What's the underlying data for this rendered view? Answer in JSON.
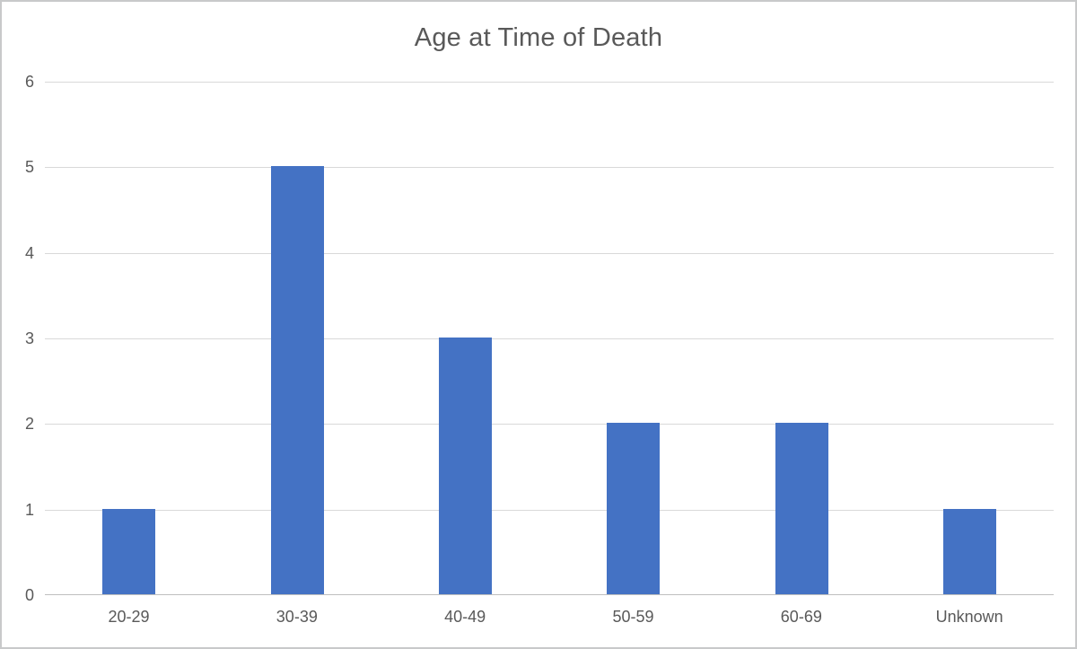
{
  "chart_data": {
    "type": "bar",
    "title": "Age at Time of Death",
    "categories": [
      "20-29",
      "30-39",
      "40-49",
      "50-59",
      "60-69",
      "Unknown"
    ],
    "values": [
      1,
      5,
      3,
      2,
      2,
      1
    ],
    "xlabel": "",
    "ylabel": "",
    "ylim": [
      0,
      6
    ],
    "yticks": [
      0,
      1,
      2,
      3,
      4,
      5,
      6
    ],
    "grid": true,
    "legend": false,
    "bar_color": "#4472C4",
    "gridline_color": "#D9D9D9",
    "axis_line_color": "#BFBFBF",
    "text_color": "#595959",
    "background_color": "#FFFFFF",
    "frame_border_color": "#C8C9CA"
  }
}
